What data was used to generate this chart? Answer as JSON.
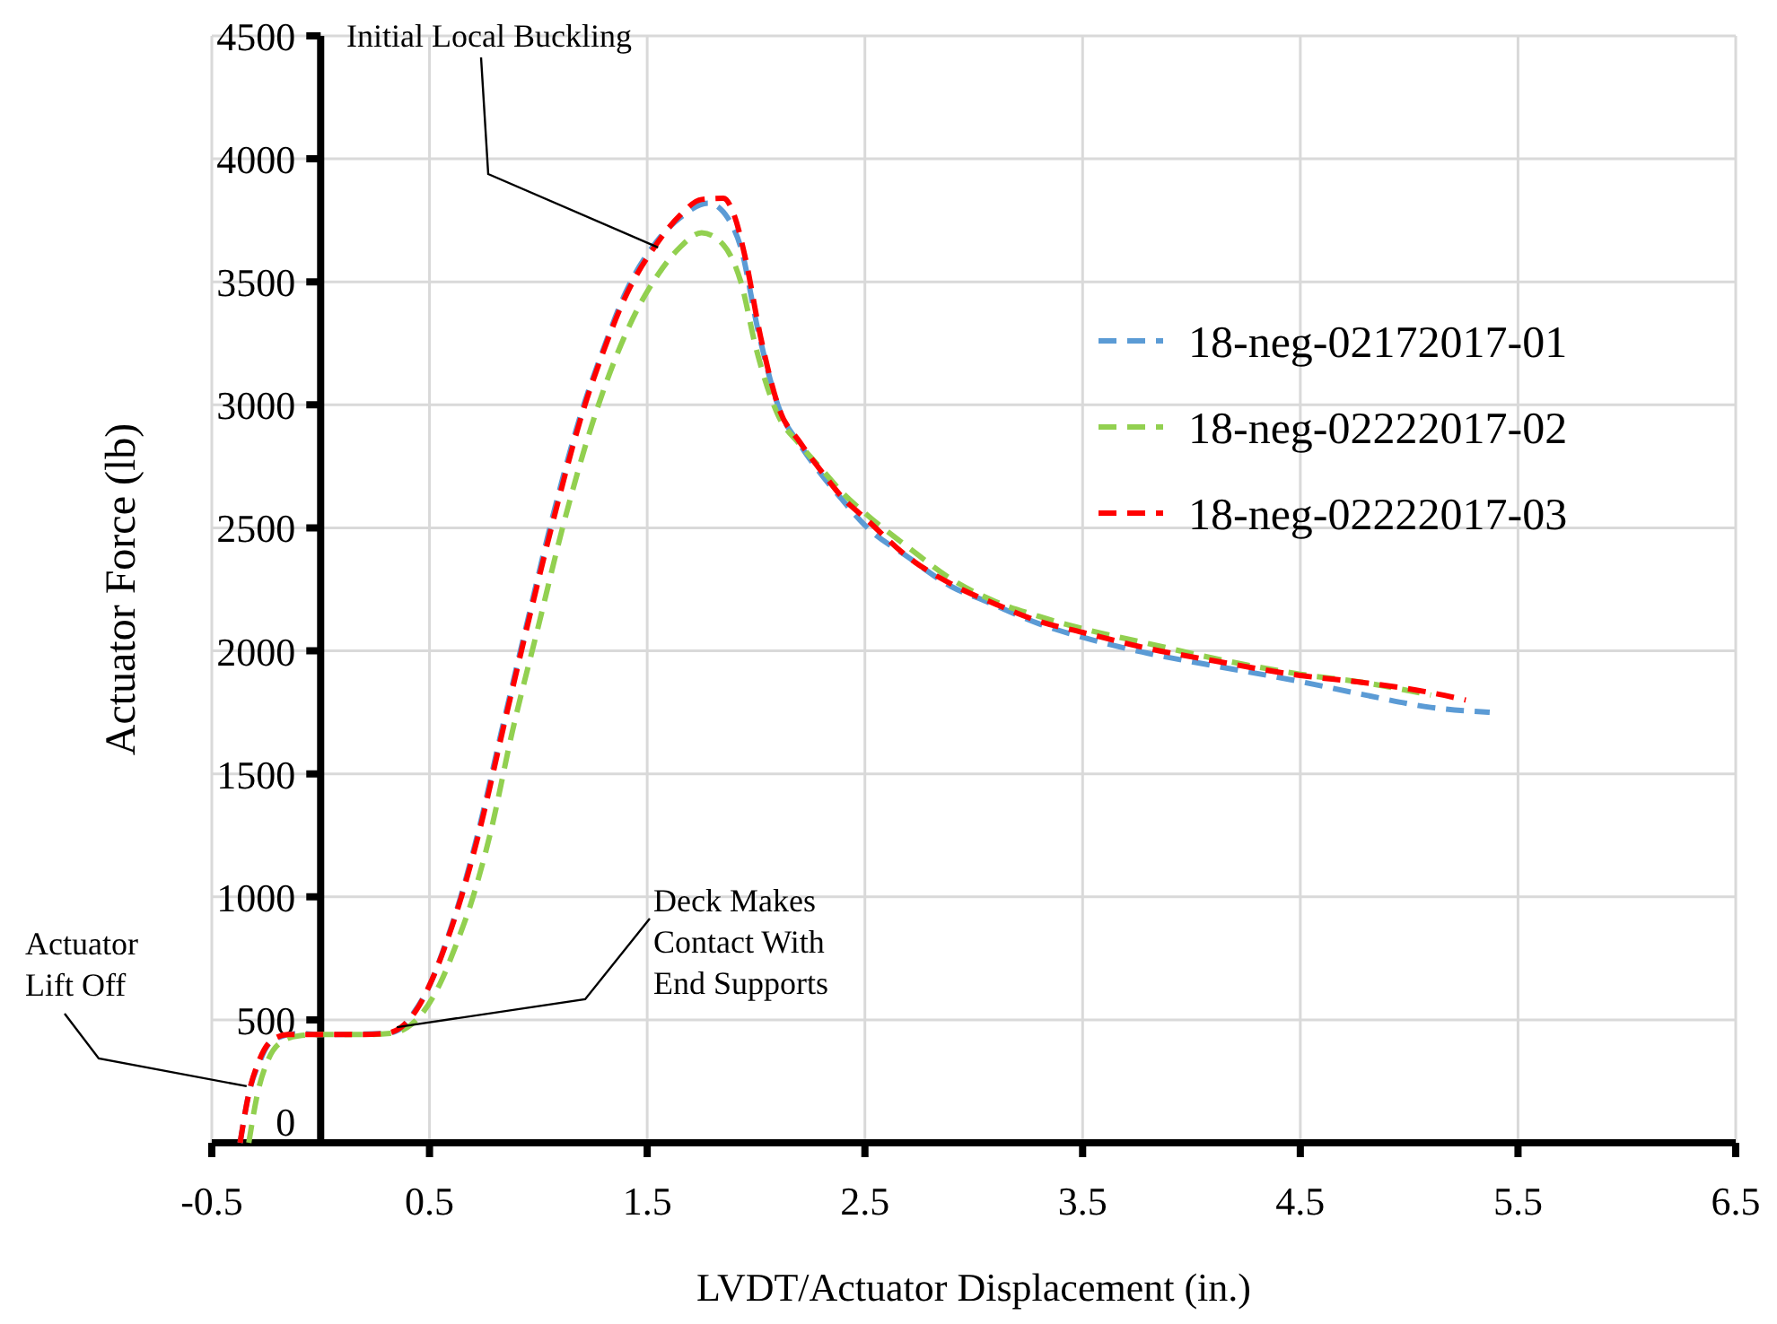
{
  "chart_data": {
    "type": "line",
    "xlabel": "LVDT/Actuator Displacement (in.)",
    "ylabel": "Actuator Force (lb)",
    "xlim": [
      -0.5,
      6.5
    ],
    "xticks": [
      -0.5,
      0.5,
      1.5,
      2.5,
      3.5,
      4.5,
      5.5,
      6.5
    ],
    "ylim": [
      0,
      4500
    ],
    "yticks": [
      0,
      500,
      1000,
      1500,
      2000,
      2500,
      3000,
      3500,
      4000,
      4500
    ],
    "grid": true,
    "legend": "right",
    "line_style": "dashed",
    "marker": "none",
    "annotations": [
      {
        "text": "Initial Local Buckling",
        "x": 1.55,
        "y": 3640
      },
      {
        "text": "Deck Makes Contact With End Supports",
        "x": 0.35,
        "y": 470
      },
      {
        "text": "Actuator Lift Off",
        "x": -0.34,
        "y": 230
      }
    ],
    "series": [
      {
        "name": "18-neg-02172017-01",
        "color": "#5b9bd5",
        "x": [
          -0.37,
          -0.33,
          -0.28,
          -0.24,
          -0.17,
          -0.1,
          0,
          0.1,
          0.2,
          0.3,
          0.36,
          0.42,
          0.5,
          0.57,
          0.64,
          0.72,
          0.83,
          0.95,
          1.07,
          1.2,
          1.3,
          1.4,
          1.54,
          1.65,
          1.78,
          1.87,
          1.93,
          2.01,
          2.11,
          2.2,
          2.28,
          2.4,
          2.5,
          2.7,
          2.9,
          3.06,
          3.3,
          3.5,
          3.8,
          4.1,
          4.5,
          4.8,
          5.1,
          5.37
        ],
        "values": [
          0,
          200,
          330,
          400,
          435,
          445,
          440,
          null,
          null,
          445,
          460,
          520,
          640,
          800,
          990,
          1250,
          1670,
          2120,
          2560,
          2975,
          3230,
          3455,
          3660,
          3760,
          3820,
          3760,
          3640,
          3300,
          2975,
          2840,
          2740,
          2610,
          2510,
          2380,
          2260,
          2200,
          2110,
          2055,
          1990,
          1940,
          1875,
          1820,
          1770,
          1750
        ]
      },
      {
        "name": "18-neg-02222017-02",
        "color": "#92d050",
        "x": [
          -0.33,
          -0.29,
          -0.24,
          -0.18,
          -0.1,
          0,
          0.2,
          0.32,
          0.4,
          0.47,
          0.55,
          0.62,
          0.7,
          0.78,
          0.88,
          1.0,
          1.12,
          1.25,
          1.35,
          1.45,
          1.55,
          1.65,
          1.75,
          1.85,
          1.93,
          2.0,
          2.1,
          2.2,
          2.3,
          2.4,
          2.5,
          2.7,
          2.9,
          3.1,
          3.3,
          3.5,
          3.8,
          4.1,
          4.5,
          4.8,
          5.1
        ],
        "values": [
          0,
          200,
          340,
          410,
          435,
          440,
          440,
          445,
          470,
          530,
          650,
          800,
          1000,
          1260,
          1670,
          2100,
          2530,
          2930,
          3180,
          3380,
          3530,
          3640,
          3700,
          3650,
          3500,
          3230,
          2960,
          2840,
          2740,
          2640,
          2560,
          2420,
          2290,
          2200,
          2140,
          2090,
          2030,
          1970,
          1905,
          1870,
          1820
        ]
      },
      {
        "name": "18-neg-02222017-03",
        "color": "#ff0000",
        "x": [
          -0.37,
          -0.33,
          -0.28,
          -0.22,
          -0.15,
          0,
          0.2,
          0.3,
          0.37,
          0.44,
          0.51,
          0.58,
          0.65,
          0.73,
          0.84,
          0.96,
          1.08,
          1.2,
          1.3,
          1.4,
          1.54,
          1.65,
          1.75,
          1.85,
          1.9,
          1.95,
          2.02,
          2.11,
          2.2,
          2.3,
          2.4,
          2.5,
          2.7,
          2.9,
          3.1,
          3.3,
          3.5,
          3.8,
          4.1,
          4.5,
          4.8,
          5.1,
          5.26
        ],
        "values": [
          0,
          200,
          340,
          420,
          440,
          440,
          440,
          445,
          470,
          540,
          660,
          820,
          1010,
          1270,
          1690,
          2140,
          2570,
          2960,
          3220,
          3440,
          3650,
          3770,
          3835,
          3840,
          3770,
          3600,
          3280,
          2975,
          2850,
          2730,
          2620,
          2540,
          2380,
          2270,
          2190,
          2120,
          2075,
          2010,
          1960,
          1900,
          1870,
          1830,
          1800
        ]
      }
    ]
  }
}
